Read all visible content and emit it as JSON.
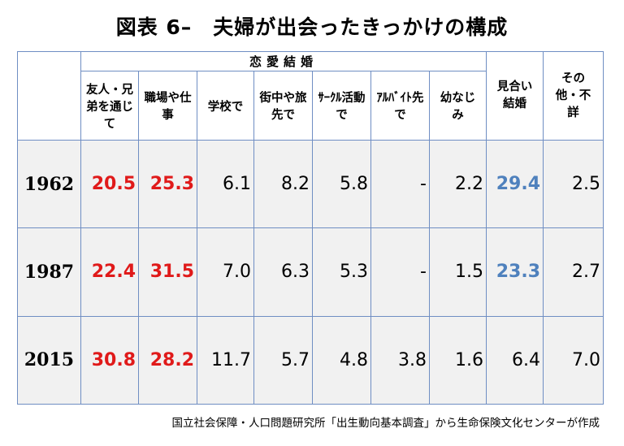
{
  "title": "図表 6–　夫婦が出会ったきっかけの構成",
  "group_header": "恋愛結婚",
  "columns": [
    "友人・兄弟を通じて",
    "職場や仕事",
    "学校で",
    "街中や旅先で",
    "ｻｰｸﾙ活動で",
    "ｱﾙﾊﾞｲﾄ先で",
    "幼なじみ",
    "見合い結婚",
    "その他・不詳"
  ],
  "rows": [
    {
      "year": "1962",
      "values": [
        "20.5",
        "25.3",
        "6.1",
        "8.2",
        "5.8",
        "-",
        "2.2",
        "29.4",
        "2.5"
      ]
    },
    {
      "year": "1987",
      "values": [
        "22.4",
        "31.5",
        "7.0",
        "6.3",
        "5.3",
        "-",
        "1.5",
        "23.3",
        "2.7"
      ]
    },
    {
      "year": "2015",
      "values": [
        "30.8",
        "28.2",
        "11.7",
        "5.7",
        "4.8",
        "3.8",
        "1.6",
        "6.4",
        "7.0"
      ]
    }
  ],
  "highlight_colors": {
    "red": "#e01a1a",
    "blue": "#4f81bd"
  },
  "source": "国立社会保障・人口問題研究所「出生動向基本調査」から生命保険文化センターが作成"
}
